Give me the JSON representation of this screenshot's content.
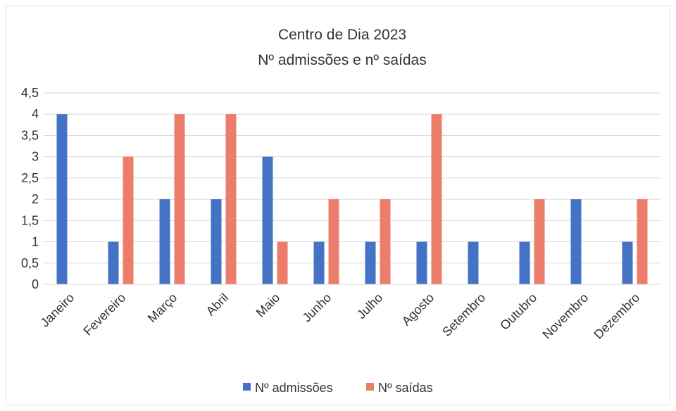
{
  "chart_data": {
    "type": "bar",
    "title": "Centro de Dia 2023",
    "subtitle": "Nº admissões e nº saídas",
    "categories": [
      "Janeiro",
      "Fevereiro",
      "Março",
      "Abril",
      "Maio",
      "Junho",
      "Julho",
      "Agosto",
      "Setembro",
      "Outubro",
      "Novembro",
      "Dezembro"
    ],
    "series": [
      {
        "name": "Nº admissões",
        "color": "#4472c4",
        "values": [
          4,
          1,
          2,
          2,
          3,
          1,
          1,
          1,
          1,
          1,
          2,
          1
        ]
      },
      {
        "name": "Nº saídas",
        "color": "#ed7d6b",
        "values": [
          0,
          3,
          4,
          4,
          1,
          2,
          2,
          4,
          0,
          2,
          0,
          2
        ]
      }
    ],
    "y_ticks": [
      "0",
      "0,5",
      "1",
      "1,5",
      "2",
      "2,5",
      "3",
      "3,5",
      "4",
      "4,5"
    ],
    "ylim": [
      0,
      4.5
    ],
    "grid": true,
    "legend_position": "bottom"
  }
}
